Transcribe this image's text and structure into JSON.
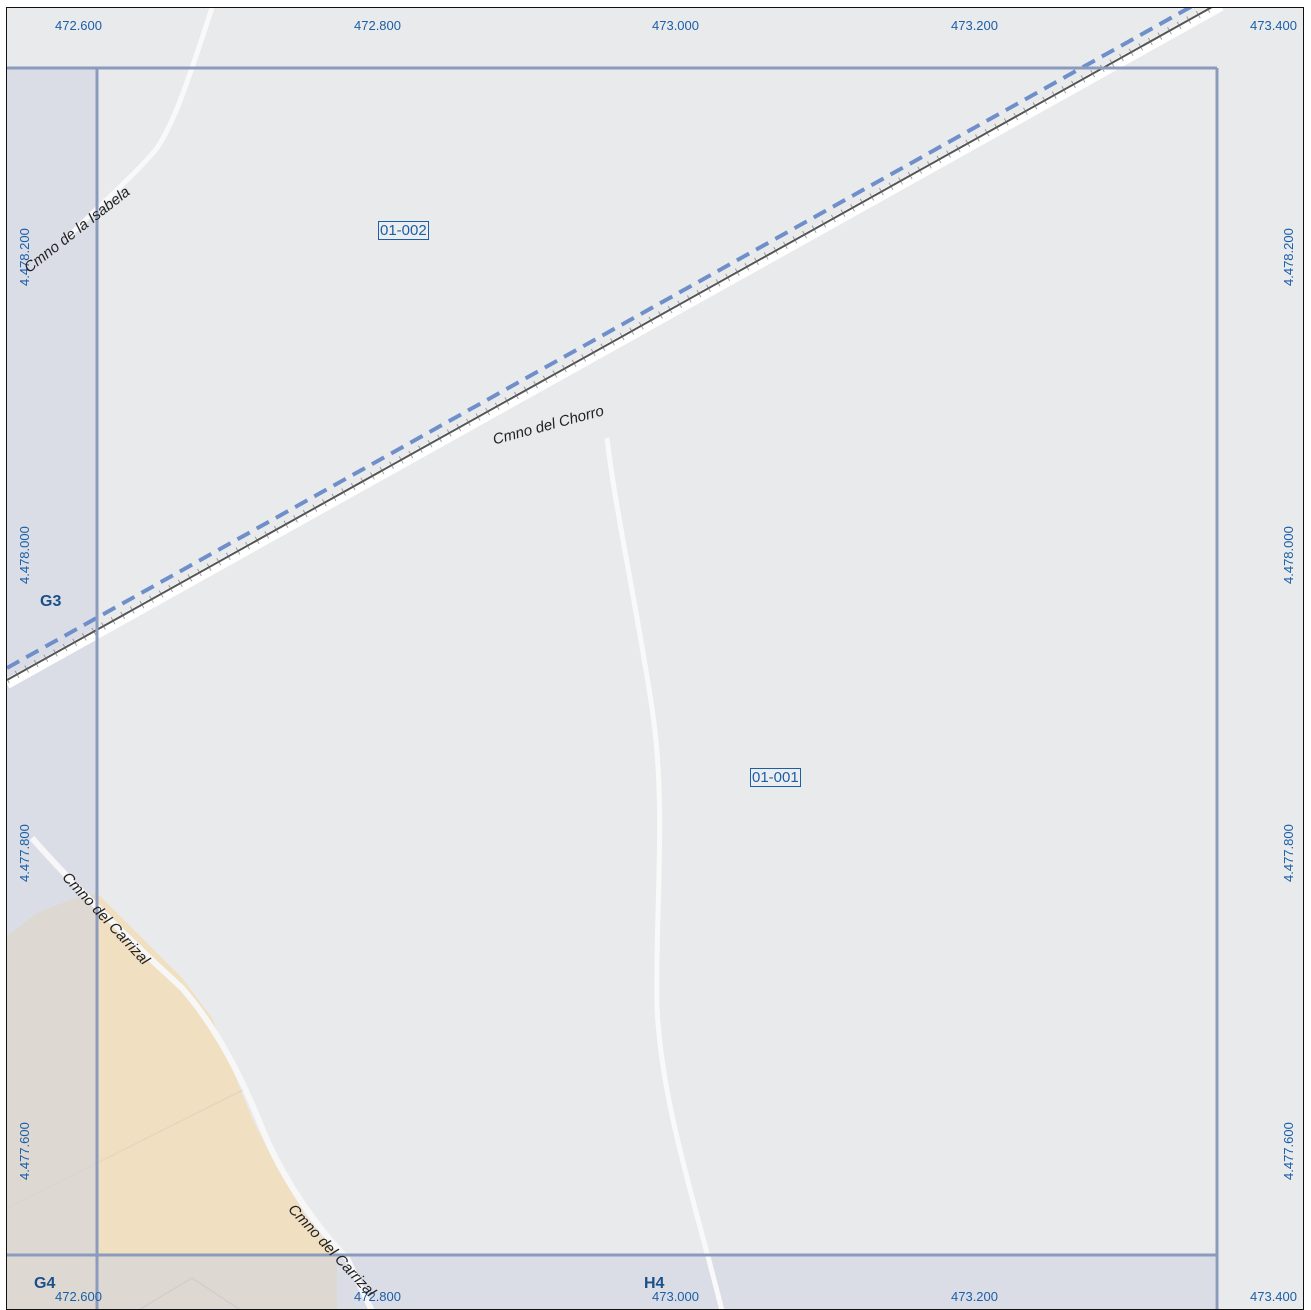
{
  "coords": {
    "top": [
      "472.600",
      "472.800",
      "473.000",
      "473.200",
      "473.400"
    ],
    "bottom": [
      "472.600",
      "472.800",
      "473.000",
      "473.200",
      "473.400"
    ],
    "left": [
      "4.478.200",
      "4.478.000",
      "4.477.800",
      "4.477.600"
    ],
    "right": [
      "4.478.200",
      "4.478.000",
      "4.477.800",
      "4.477.600"
    ]
  },
  "parcels": [
    "01-002",
    "01-001"
  ],
  "grid_cells": [
    "G3",
    "G4",
    "H4"
  ],
  "roads": {
    "isabela": "Cmno de la Isabela",
    "chorro": "Cmno del Chorro",
    "carrizal_1": "Cmno del Carrizal",
    "carrizal_2": "Cmno del Carrizal"
  },
  "colors": {
    "background": "#e9eaec",
    "grid_line": "#8a9bbd",
    "outside_shade": "#d5d7e3",
    "urban_fill": "#f0dfc1",
    "railway_dash": "#6f8fcb",
    "label_blue": "#1a5fa8"
  }
}
